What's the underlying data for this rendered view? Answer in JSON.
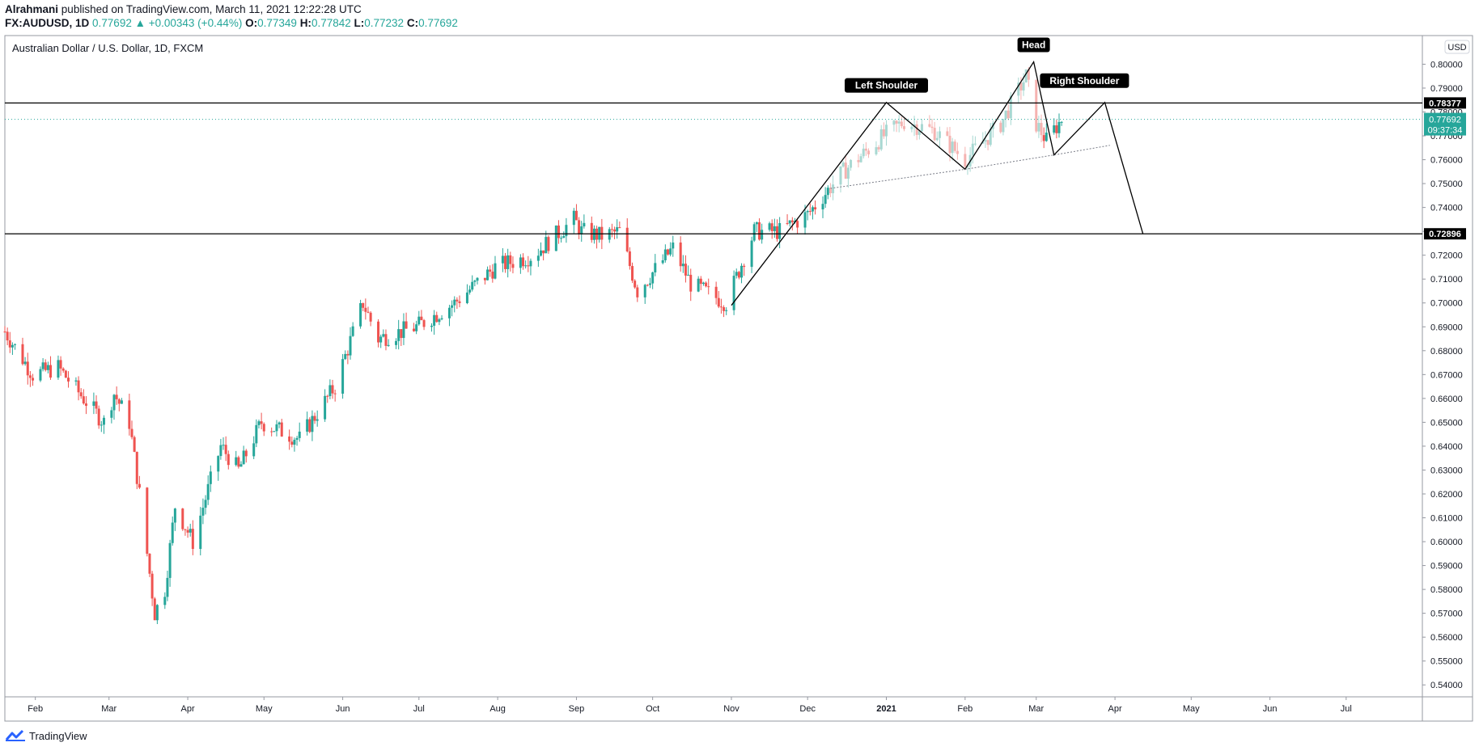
{
  "header": {
    "author": "Alrahmani",
    "published_text": "published on TradingView.com, March 11, 2021 12:22:28 UTC"
  },
  "ticker": {
    "symbol": "FX:AUDUSD, 1D",
    "price": "0.77692",
    "arrow": "▲",
    "change": "+0.00343 (+0.44%)",
    "o_label": "O:",
    "o": "0.77349",
    "h_label": "H:",
    "h": "0.77842",
    "l_label": "L:",
    "l": "0.77232",
    "c_label": "C:",
    "c": "0.77692"
  },
  "footer": {
    "brand": "TradingView",
    "icon": "tradingview-logo-icon"
  },
  "colors": {
    "up": "#26a69a",
    "down": "#ef5350",
    "up_faded": "#a8d8d2",
    "down_faded": "#f5b3b1",
    "price_tag": "#26a69a",
    "level_tag": "#000000"
  },
  "chart_data": {
    "type": "candlestick",
    "title": "Australian Dollar / U.S. Dollar, 1D, FXCM",
    "currency": "USD",
    "ylim": [
      0.535,
      0.812
    ],
    "x_start": "2020-01-20",
    "x_end": "2021-07-31",
    "y_ticks": [
      "0.80000",
      "0.79000",
      "0.78000",
      "0.77000",
      "0.76000",
      "0.75000",
      "0.74000",
      "0.73000",
      "0.72000",
      "0.71000",
      "0.70000",
      "0.69000",
      "0.68000",
      "0.67000",
      "0.66000",
      "0.65000",
      "0.64000",
      "0.63000",
      "0.62000",
      "0.61000",
      "0.60000",
      "0.59000",
      "0.58000",
      "0.57000",
      "0.56000",
      "0.55000",
      "0.54000"
    ],
    "x_ticks": [
      {
        "date": "2020-02-01",
        "label": "Feb"
      },
      {
        "date": "2020-03-01",
        "label": "Mar"
      },
      {
        "date": "2020-04-01",
        "label": "Apr"
      },
      {
        "date": "2020-05-01",
        "label": "May"
      },
      {
        "date": "2020-06-01",
        "label": "Jun"
      },
      {
        "date": "2020-07-01",
        "label": "Jul"
      },
      {
        "date": "2020-08-01",
        "label": "Aug"
      },
      {
        "date": "2020-09-01",
        "label": "Sep"
      },
      {
        "date": "2020-10-01",
        "label": "Oct"
      },
      {
        "date": "2020-11-01",
        "label": "Nov"
      },
      {
        "date": "2020-12-01",
        "label": "Dec"
      },
      {
        "date": "2021-01-01",
        "label": "2021"
      },
      {
        "date": "2021-02-01",
        "label": "Feb"
      },
      {
        "date": "2021-03-01",
        "label": "Mar"
      },
      {
        "date": "2021-04-01",
        "label": "Apr"
      },
      {
        "date": "2021-05-01",
        "label": "May"
      },
      {
        "date": "2021-06-01",
        "label": "Jun"
      },
      {
        "date": "2021-07-01",
        "label": "Jul"
      }
    ],
    "anchors": [
      {
        "date": "2020-01-20",
        "close": 0.688
      },
      {
        "date": "2020-01-31",
        "close": 0.67
      },
      {
        "date": "2020-02-10",
        "close": 0.673
      },
      {
        "date": "2020-02-20",
        "close": 0.66
      },
      {
        "date": "2020-02-28",
        "close": 0.65
      },
      {
        "date": "2020-03-03",
        "close": 0.662
      },
      {
        "date": "2020-03-09",
        "close": 0.65
      },
      {
        "date": "2020-03-13",
        "close": 0.62
      },
      {
        "date": "2020-03-19",
        "close": 0.57
      },
      {
        "date": "2020-03-23",
        "close": 0.58
      },
      {
        "date": "2020-03-27",
        "close": 0.615
      },
      {
        "date": "2020-04-03",
        "close": 0.6
      },
      {
        "date": "2020-04-14",
        "close": 0.64
      },
      {
        "date": "2020-04-21",
        "close": 0.63
      },
      {
        "date": "2020-04-30",
        "close": 0.65
      },
      {
        "date": "2020-05-15",
        "close": 0.643
      },
      {
        "date": "2020-05-29",
        "close": 0.665
      },
      {
        "date": "2020-06-09",
        "close": 0.7
      },
      {
        "date": "2020-06-15",
        "close": 0.685
      },
      {
        "date": "2020-06-30",
        "close": 0.69
      },
      {
        "date": "2020-07-15",
        "close": 0.7
      },
      {
        "date": "2020-07-31",
        "close": 0.715
      },
      {
        "date": "2020-08-15",
        "close": 0.72
      },
      {
        "date": "2020-08-31",
        "close": 0.735
      },
      {
        "date": "2020-09-03",
        "close": 0.73
      },
      {
        "date": "2020-09-11",
        "close": 0.728
      },
      {
        "date": "2020-09-18",
        "close": 0.73
      },
      {
        "date": "2020-09-25",
        "close": 0.705
      },
      {
        "date": "2020-10-09",
        "close": 0.723
      },
      {
        "date": "2020-10-16",
        "close": 0.708
      },
      {
        "date": "2020-10-30",
        "close": 0.7
      },
      {
        "date": "2020-11-10",
        "close": 0.73
      },
      {
        "date": "2020-11-20",
        "close": 0.73
      },
      {
        "date": "2020-12-01",
        "close": 0.737
      },
      {
        "date": "2020-12-15",
        "close": 0.755
      },
      {
        "date": "2020-12-31",
        "close": 0.77
      },
      {
        "date": "2021-01-08",
        "close": 0.776
      },
      {
        "date": "2021-01-20",
        "close": 0.772
      },
      {
        "date": "2021-02-01",
        "close": 0.76
      },
      {
        "date": "2021-02-15",
        "close": 0.775
      },
      {
        "date": "2021-02-25",
        "close": 0.795
      },
      {
        "date": "2021-03-01",
        "close": 0.775
      },
      {
        "date": "2021-03-05",
        "close": 0.768
      },
      {
        "date": "2021-03-11",
        "close": 0.7769
      }
    ],
    "horizontal_levels": [
      {
        "value": 0.78377,
        "label": "0.78377"
      },
      {
        "value": 0.72896,
        "label": "0.72896"
      }
    ],
    "current_price": {
      "value": 0.77692,
      "label": "0.77692",
      "countdown": "09:37:34"
    },
    "pattern": {
      "path": [
        {
          "date": "2020-11-01",
          "price": 0.699
        },
        {
          "date": "2021-01-01",
          "price": 0.784
        },
        {
          "date": "2021-02-01",
          "price": 0.756
        },
        {
          "date": "2021-02-28",
          "price": 0.801
        },
        {
          "date": "2021-03-08",
          "price": 0.762
        },
        {
          "date": "2021-03-28",
          "price": 0.784
        },
        {
          "date": "2021-04-12",
          "price": 0.729
        }
      ],
      "neckline": [
        {
          "date": "2020-12-10",
          "price": 0.748
        },
        {
          "date": "2021-02-01",
          "price": 0.756
        },
        {
          "date": "2021-03-08",
          "price": 0.762
        },
        {
          "date": "2021-03-30",
          "price": 0.766
        }
      ],
      "labels": [
        {
          "text": "Left Shoulder",
          "date": "2021-01-01",
          "price": 0.784
        },
        {
          "text": "Head",
          "date": "2021-02-28",
          "price": 0.801
        },
        {
          "text": "Right Shoulder",
          "date": "2021-03-20",
          "price": 0.786
        }
      ]
    }
  }
}
